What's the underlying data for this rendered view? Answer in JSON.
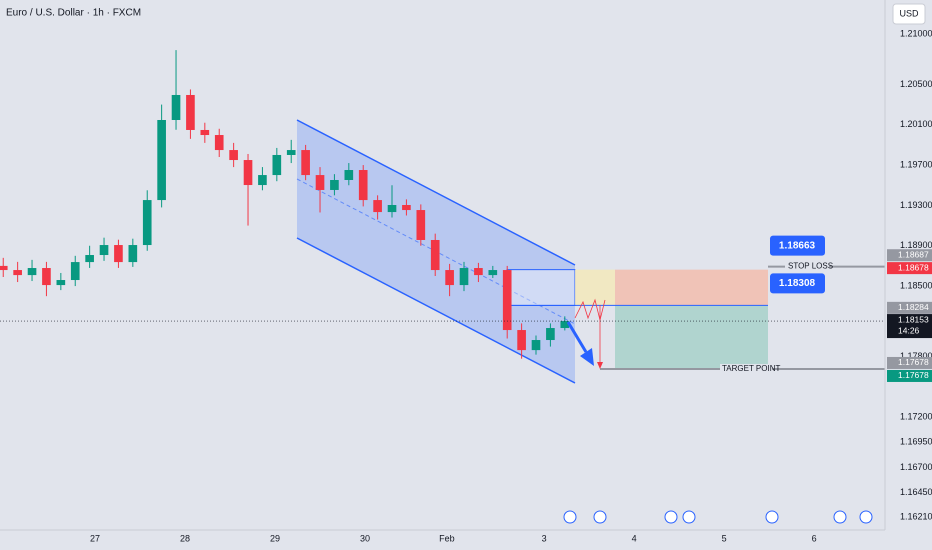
{
  "chart_data": {
    "type": "candlestick",
    "title": "Euro / U.S. Dollar · 1h · FXCM",
    "currency": "USD",
    "x": [
      -1.02,
      -0.86,
      -0.7,
      -0.54,
      -0.38,
      -0.22,
      -0.06,
      0.1,
      0.26,
      0.42,
      0.58,
      0.74,
      0.9,
      1.06,
      1.22,
      1.38,
      1.54,
      1.7,
      1.86,
      2.02,
      2.18,
      2.34,
      2.5,
      2.66,
      2.82,
      2.98,
      3.14,
      3.3,
      3.46,
      3.62,
      3.78,
      3.94,
      4.1,
      4.26,
      4.42,
      4.58,
      4.74,
      4.9,
      5.06,
      5.22
    ],
    "open": [
      1.187,
      1.18659,
      1.18609,
      1.18679,
      1.1851,
      1.1856,
      1.18738,
      1.18808,
      1.18907,
      1.18738,
      1.18907,
      1.19353,
      1.20147,
      1.20395,
      1.20048,
      1.19998,
      1.19849,
      1.1975,
      1.19502,
      1.19601,
      1.198,
      1.19849,
      1.19601,
      1.19453,
      1.19552,
      1.19651,
      1.19353,
      1.19234,
      1.19304,
      1.19254,
      1.18957,
      1.18659,
      1.1851,
      1.18679,
      1.18609,
      1.18659,
      1.18064,
      1.17865,
      1.17965,
      1.18084
    ],
    "high": [
      1.1878,
      1.1874,
      1.1876,
      1.1874,
      1.1863,
      1.188,
      1.189,
      1.1898,
      1.1896,
      1.1897,
      1.1945,
      1.203,
      1.2084,
      1.2045,
      1.2012,
      1.2006,
      1.1992,
      1.1981,
      1.1968,
      1.1987,
      1.1995,
      1.199,
      1.1968,
      1.1961,
      1.1972,
      1.197,
      1.194,
      1.195,
      1.1936,
      1.1931,
      1.1902,
      1.1872,
      1.1874,
      1.1873,
      1.187,
      1.187,
      1.1813,
      1.1801,
      1.1813,
      1.182
    ],
    "low": [
      1.1859,
      1.1854,
      1.1855,
      1.184,
      1.1846,
      1.185,
      1.1868,
      1.1875,
      1.1868,
      1.1869,
      1.1885,
      1.1928,
      1.2005,
      1.1996,
      1.1992,
      1.1978,
      1.1968,
      1.191,
      1.1945,
      1.1954,
      1.1972,
      1.1955,
      1.1923,
      1.194,
      1.195,
      1.1929,
      1.1916,
      1.1918,
      1.192,
      1.189,
      1.186,
      1.184,
      1.1845,
      1.1854,
      1.1858,
      1.1798,
      1.1778,
      1.1782,
      1.179,
      1.1806
    ],
    "close": [
      1.18659,
      1.18609,
      1.18679,
      1.1851,
      1.1856,
      1.18738,
      1.18808,
      1.18907,
      1.18738,
      1.18907,
      1.19353,
      1.20147,
      1.20395,
      1.20048,
      1.19998,
      1.19849,
      1.1975,
      1.19502,
      1.19601,
      1.198,
      1.19849,
      1.19601,
      1.19453,
      1.19552,
      1.19651,
      1.19353,
      1.19234,
      1.19304,
      1.19254,
      1.18957,
      1.18659,
      1.1851,
      1.18679,
      1.18609,
      1.18659,
      1.18064,
      1.17865,
      1.17965,
      1.18084,
      1.18153
    ],
    "up_color": "#089981",
    "down_color": "#f23645",
    "xlim": [
      -1.056,
      8.778
    ],
    "xticks": [
      {
        "value": 0,
        "label": "27"
      },
      {
        "value": 1,
        "label": "28"
      },
      {
        "value": 2,
        "label": "29"
      },
      {
        "value": 3,
        "label": "30"
      },
      {
        "value": 3.91,
        "label": "Feb"
      },
      {
        "value": 4.99,
        "label": "3"
      },
      {
        "value": 5.99,
        "label": "4"
      },
      {
        "value": 6.99,
        "label": "5"
      },
      {
        "value": 7.99,
        "label": "6"
      }
    ],
    "ylim": [
      1.16081,
      1.21337
    ],
    "yticks": [
      {
        "value": 1.21,
        "label": "1.21000"
      },
      {
        "value": 1.205,
        "label": "1.20500"
      },
      {
        "value": 1.201,
        "label": "1.20100"
      },
      {
        "value": 1.197,
        "label": "1.19700"
      },
      {
        "value": 1.193,
        "label": "1.19300"
      },
      {
        "value": 1.189,
        "label": "1.18900"
      },
      {
        "value": 1.185,
        "label": "1.18500"
      },
      {
        "value": 1.178,
        "label": "1.17800"
      },
      {
        "value": 1.172,
        "label": "1.17200"
      },
      {
        "value": 1.1695,
        "label": "1.16950"
      },
      {
        "value": 1.167,
        "label": "1.16700"
      },
      {
        "value": 1.1645,
        "label": "1.16450"
      },
      {
        "value": 1.1621,
        "label": "1.16210"
      }
    ],
    "grid": false,
    "price_labels": [
      {
        "value": 1.18687,
        "color": "#9598a1"
      },
      {
        "value": 1.18678,
        "color": "#f23645"
      },
      {
        "value": 1.18284,
        "color": "#9598a1"
      },
      {
        "value": 1.17678,
        "color": "#9598a1"
      },
      {
        "value": 1.17678,
        "color": "#089981"
      }
    ],
    "current_price": {
      "value": 1.18153,
      "countdown": "14:26"
    },
    "position": {
      "entry": 1.18308,
      "stop": 1.18663,
      "target": 1.17678,
      "stop_text": "STOP LOSS",
      "target_text": "TARGET POINT"
    }
  }
}
